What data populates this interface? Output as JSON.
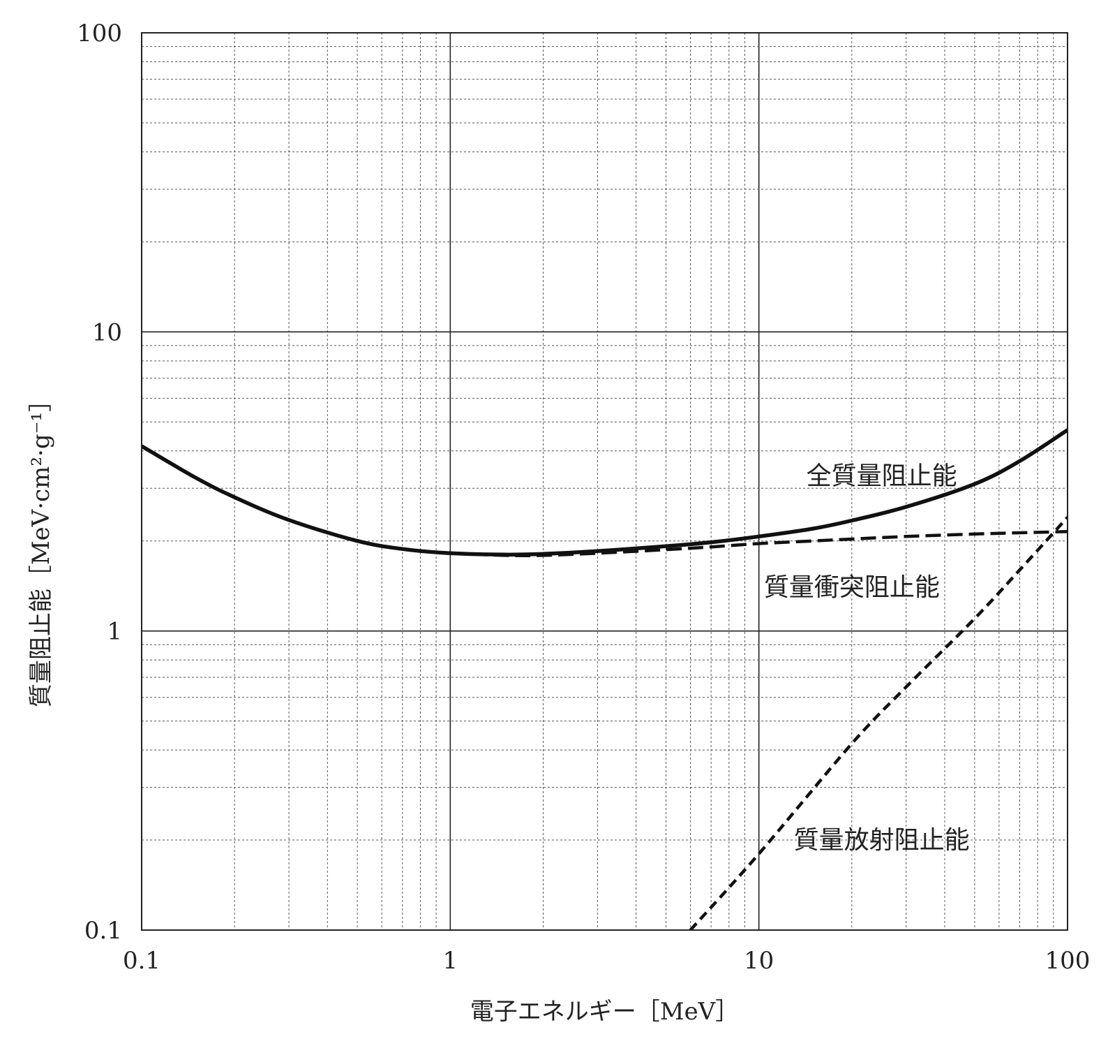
{
  "chart_data": {
    "type": "line",
    "xscale": "log",
    "yscale": "log",
    "xlim": [
      0.1,
      100
    ],
    "ylim": [
      0.1,
      100
    ],
    "xticks": [
      "0.1",
      "1",
      "10",
      "100"
    ],
    "yticks": [
      "0.1",
      "1",
      "10",
      "100"
    ],
    "xlabel": "電子エネルギー［MeV］",
    "ylabel": "質量阻止能［MeV·cm²·g⁻¹］",
    "grid": "major solid, minor dotted",
    "series": [
      {
        "name": "全質量阻止能",
        "style": "solid",
        "x": [
          0.1,
          0.15,
          0.2,
          0.3,
          0.5,
          0.7,
          1,
          1.5,
          2,
          3,
          5,
          7,
          10,
          15,
          20,
          30,
          50,
          70,
          100
        ],
        "y": [
          4.15,
          3.25,
          2.8,
          2.35,
          2.0,
          1.88,
          1.82,
          1.8,
          1.81,
          1.85,
          1.92,
          1.98,
          2.07,
          2.2,
          2.34,
          2.6,
          3.1,
          3.7,
          4.7
        ]
      },
      {
        "name": "質量衝突阻止能",
        "style": "dashed",
        "x": [
          1,
          1.5,
          2,
          3,
          5,
          7,
          10,
          15,
          20,
          30,
          50,
          70,
          100
        ],
        "y": [
          1.82,
          1.79,
          1.79,
          1.82,
          1.87,
          1.91,
          1.96,
          2.0,
          2.03,
          2.07,
          2.11,
          2.13,
          2.15
        ]
      },
      {
        "name": "質量放射阻止能",
        "style": "dashed",
        "x": [
          6,
          10,
          20,
          30,
          50,
          70,
          100
        ],
        "y": [
          0.1,
          0.18,
          0.42,
          0.65,
          1.1,
          1.6,
          2.4
        ]
      }
    ],
    "annotations": [
      {
        "text": "全質量阻止能",
        "x": 25,
        "y": 3.3
      },
      {
        "text": "質量衝突阻止能",
        "x": 20,
        "y": 1.4
      },
      {
        "text": "質量放射阻止能",
        "x": 25,
        "y": 0.2
      }
    ]
  }
}
